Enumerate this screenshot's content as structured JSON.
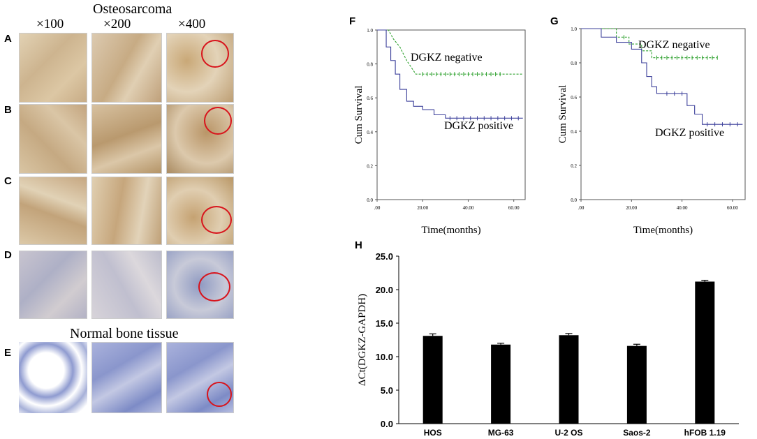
{
  "left": {
    "header": "Osteosarcoma",
    "magnifications": [
      "×100",
      "×200",
      "×400"
    ],
    "rows": [
      {
        "letter": "A",
        "tone": "tan"
      },
      {
        "letter": "B",
        "tone": "tan"
      },
      {
        "letter": "C",
        "tone": "tan"
      },
      {
        "letter": "D",
        "tone": "blue-light"
      },
      {
        "letter": "E",
        "tone": "blue"
      }
    ],
    "normal_label": "Normal bone tissue",
    "colors": {
      "tan": "#d9c6a6",
      "tan_dark": "#b89a72",
      "blue_light": "#c9c9d8",
      "blue": "#8f9bd0",
      "circle": "#d8141c"
    }
  },
  "chart_data": [
    {
      "panel": "F",
      "type": "line",
      "xlabel": "Time(months)",
      "ylabel": "Cum Survival",
      "xlim": [
        0,
        65
      ],
      "ylim": [
        0,
        1.0
      ],
      "x_ticks": [
        ".00",
        "20.00",
        "40.00",
        "60.00"
      ],
      "y_ticks": [
        "0.0",
        "0.2",
        "0.4",
        "0.6",
        "0.8",
        "1.0"
      ],
      "annotations": [
        "DGKZ negative",
        "DGKZ positive"
      ],
      "series": [
        {
          "color": "#2ca02c",
          "style": "dashed",
          "x": [
            0,
            5,
            7,
            7,
            10,
            10,
            13,
            13,
            17,
            17,
            64
          ],
          "y": [
            1.0,
            1.0,
            0.95,
            0.95,
            0.9,
            0.9,
            0.82,
            0.82,
            0.74,
            0.74,
            0.74
          ],
          "censor_x": [
            20,
            22,
            24,
            26,
            28,
            30,
            32,
            34,
            36,
            38,
            40,
            42,
            44,
            46,
            48,
            50,
            52,
            54
          ]
        },
        {
          "color": "#3b3f9a",
          "style": "solid",
          "x": [
            0,
            4,
            4,
            6,
            6,
            8,
            8,
            10,
            10,
            13,
            13,
            16,
            16,
            20,
            20,
            25,
            25,
            30,
            30,
            64
          ],
          "y": [
            1.0,
            1.0,
            0.9,
            0.9,
            0.82,
            0.82,
            0.74,
            0.74,
            0.65,
            0.65,
            0.58,
            0.58,
            0.55,
            0.55,
            0.53,
            0.53,
            0.5,
            0.5,
            0.48,
            0.48
          ],
          "censor_x": [
            32,
            35,
            38,
            41,
            44,
            47,
            50,
            53,
            56,
            59,
            62
          ]
        }
      ]
    },
    {
      "panel": "G",
      "type": "line",
      "xlabel": "Time(months)",
      "ylabel": "Cum Survival",
      "xlim": [
        0,
        65
      ],
      "ylim": [
        0,
        1.0
      ],
      "x_ticks": [
        ".00",
        "20.00",
        "40.00",
        "60.00"
      ],
      "y_ticks": [
        "0.0",
        "0.2",
        "0.4",
        "0.6",
        "0.8",
        "1.0"
      ],
      "annotations": [
        "DGKZ negative",
        "DGKZ positive"
      ],
      "series": [
        {
          "color": "#2ca02c",
          "style": "dashed",
          "x": [
            0,
            14,
            14,
            19,
            19,
            24,
            24,
            28,
            28,
            54
          ],
          "y": [
            1.0,
            1.0,
            0.95,
            0.95,
            0.91,
            0.91,
            0.87,
            0.87,
            0.83,
            0.83
          ],
          "censor_x": [
            17,
            30,
            32,
            34,
            36,
            38,
            40,
            42,
            44,
            46,
            48,
            50,
            52,
            54
          ]
        },
        {
          "color": "#3b3f9a",
          "style": "solid",
          "x": [
            0,
            8,
            8,
            14,
            14,
            20,
            20,
            24,
            24,
            26,
            26,
            28,
            28,
            30,
            30,
            42,
            42,
            45,
            45,
            48,
            48,
            64
          ],
          "y": [
            1.0,
            1.0,
            0.95,
            0.95,
            0.92,
            0.92,
            0.88,
            0.88,
            0.8,
            0.8,
            0.72,
            0.72,
            0.66,
            0.66,
            0.62,
            0.62,
            0.55,
            0.55,
            0.5,
            0.5,
            0.44,
            0.44
          ],
          "censor_x": [
            34,
            37,
            40,
            50,
            53,
            56,
            59,
            62
          ]
        }
      ]
    },
    {
      "panel": "H",
      "type": "bar",
      "ylabel": "ΔCt(DGKZ-GAPDH)",
      "categories": [
        "HOS",
        "MG-63",
        "U-2 OS",
        "Saos-2",
        "hFOB 1.19"
      ],
      "values": [
        13.1,
        11.8,
        13.2,
        11.6,
        21.2
      ],
      "errors": [
        0.3,
        0.2,
        0.25,
        0.25,
        0.2
      ],
      "ylim": [
        0,
        25
      ],
      "y_ticks": [
        "0.0",
        "5.0",
        "10.0",
        "15.0",
        "20.0",
        "25.0"
      ],
      "bar_color": "#000000"
    }
  ]
}
